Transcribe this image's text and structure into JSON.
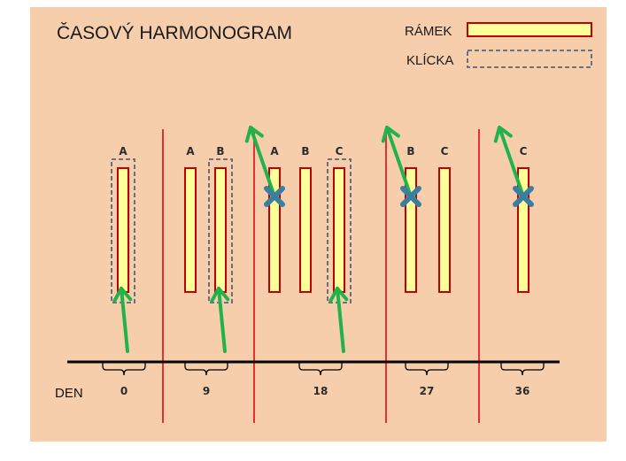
{
  "title": "ČASOVÝ HARMONOGRAM",
  "legend": {
    "frame_label": "RÁMEK",
    "loop_label": "KLÍCKA"
  },
  "axis_label": "DEN",
  "days": [
    "0",
    "9",
    "18",
    "27",
    "36"
  ],
  "frames": [
    {
      "label": "A",
      "period": 0,
      "loop": true,
      "arrow": "up",
      "crossed": false
    },
    {
      "label": "A",
      "period": 1,
      "loop": false,
      "arrow": "none",
      "crossed": false
    },
    {
      "label": "B",
      "period": 1,
      "loop": true,
      "arrow": "up",
      "crossed": false
    },
    {
      "label": "A",
      "period": 2,
      "loop": false,
      "arrow": "out",
      "crossed": true
    },
    {
      "label": "B",
      "period": 2,
      "loop": false,
      "arrow": "none",
      "crossed": false
    },
    {
      "label": "C",
      "period": 2,
      "loop": true,
      "arrow": "up",
      "crossed": false
    },
    {
      "label": "B",
      "period": 3,
      "loop": false,
      "arrow": "out",
      "crossed": true
    },
    {
      "label": "C",
      "period": 3,
      "loop": false,
      "arrow": "none",
      "crossed": false
    },
    {
      "label": "C",
      "period": 4,
      "loop": false,
      "arrow": "out",
      "crossed": true
    }
  ],
  "colors": {
    "background": "#f6ceab",
    "frame_fill": "#ffff99",
    "frame_stroke": "#c00000",
    "loop_stroke": "#5b6478",
    "divider": "#e8302c",
    "arrow": "#22b24c",
    "cross": "#3a7ea0",
    "timeline": "#000000"
  }
}
